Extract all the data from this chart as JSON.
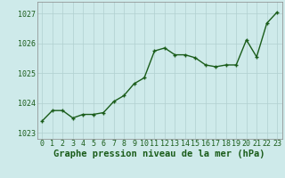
{
  "x": [
    0,
    1,
    2,
    3,
    4,
    5,
    6,
    7,
    8,
    9,
    10,
    11,
    12,
    13,
    14,
    15,
    16,
    17,
    18,
    19,
    20,
    21,
    22,
    23
  ],
  "y": [
    1023.4,
    1023.75,
    1023.75,
    1023.5,
    1023.62,
    1023.62,
    1023.68,
    1024.05,
    1024.25,
    1024.65,
    1024.85,
    1025.75,
    1025.85,
    1025.62,
    1025.62,
    1025.52,
    1025.28,
    1025.22,
    1025.28,
    1025.28,
    1026.12,
    1025.55,
    1026.68,
    1027.05
  ],
  "line_color": "#1a5c1a",
  "marker": "+",
  "background_color": "#ceeaea",
  "grid_color": "#b0d0d0",
  "ylabel_values": [
    1023,
    1024,
    1025,
    1026,
    1027
  ],
  "xlabel_values": [
    0,
    1,
    2,
    3,
    4,
    5,
    6,
    7,
    8,
    9,
    10,
    11,
    12,
    13,
    14,
    15,
    16,
    17,
    18,
    19,
    20,
    21,
    22,
    23
  ],
  "xlabel_label": "Graphe pression niveau de la mer (hPa)",
  "xlim": [
    -0.5,
    23.5
  ],
  "ylim": [
    1022.8,
    1027.4
  ],
  "title_color": "#1a5c1a",
  "tick_fontsize": 6,
  "axis_label_fontsize": 7.5,
  "linewidth": 1.0,
  "markersize": 3.5,
  "spine_color": "#888888"
}
